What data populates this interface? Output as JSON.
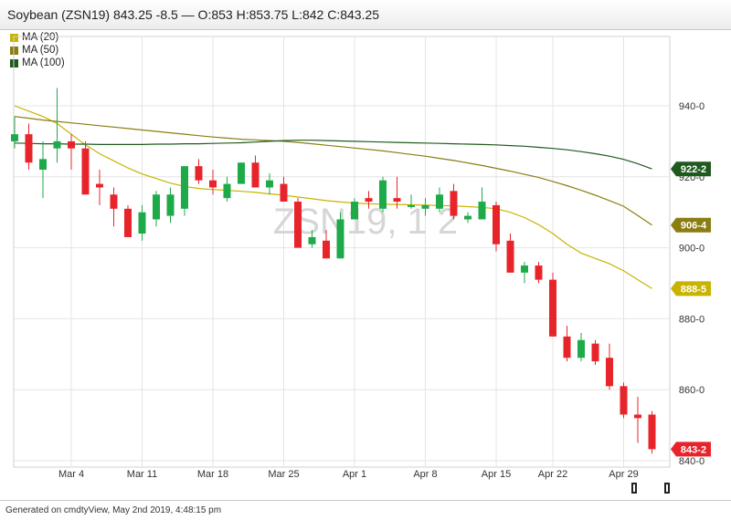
{
  "header": {
    "title": "Soybean (ZSN19) 843.25 -8.5 — O:853 H:853.75 L:842 C:843.25"
  },
  "footer": {
    "text": "Generated on cmdtyView, May 2nd 2019, 4:48:15 pm"
  },
  "colors": {
    "up": "#1faa4a",
    "down": "#e8242b",
    "ma20": "#c8b400",
    "ma50": "#8a7d12",
    "ma100": "#1e5a1e",
    "grid": "#e4e4e4"
  },
  "chart_data": {
    "type": "candlestick",
    "watermark": "ZSN19, 1 2",
    "ylim": [
      840,
      950
    ],
    "y_ticks": [
      {
        "value": 940,
        "label": "940-0"
      },
      {
        "value": 920,
        "label": "920-0"
      },
      {
        "value": 900,
        "label": "900-0"
      },
      {
        "value": 880,
        "label": "880-0"
      },
      {
        "value": 860,
        "label": "860-0"
      },
      {
        "value": 840,
        "label": "840-0"
      }
    ],
    "x_ticks": [
      {
        "index": 4,
        "label": "Mar 4"
      },
      {
        "index": 9,
        "label": "Mar 11"
      },
      {
        "index": 14,
        "label": "Mar 18"
      },
      {
        "index": 19,
        "label": "Mar 25"
      },
      {
        "index": 24,
        "label": "Apr 1"
      },
      {
        "index": 29,
        "label": "Apr 8"
      },
      {
        "index": 34,
        "label": "Apr 15"
      },
      {
        "index": 38,
        "label": "Apr 22"
      },
      {
        "index": 43,
        "label": "Apr 29"
      }
    ],
    "ohlc": [
      [
        930,
        937,
        928,
        932
      ],
      [
        932,
        935,
        922,
        924
      ],
      [
        922,
        930,
        914,
        925
      ],
      [
        928,
        945,
        924,
        930
      ],
      [
        930,
        932,
        922,
        928
      ],
      [
        928,
        930,
        915,
        915
      ],
      [
        918,
        922,
        912,
        917
      ],
      [
        915,
        917,
        906,
        911
      ],
      [
        911,
        912,
        903,
        903
      ],
      [
        904,
        912,
        902,
        910
      ],
      [
        908,
        916,
        906,
        915
      ],
      [
        909,
        917,
        907,
        915
      ],
      [
        911,
        923,
        909,
        923
      ],
      [
        923,
        925,
        918,
        919
      ],
      [
        919,
        922,
        915,
        917
      ],
      [
        914,
        920,
        913,
        918
      ],
      [
        918,
        924,
        918,
        924
      ],
      [
        924,
        926,
        917,
        917
      ],
      [
        917,
        921,
        915,
        919
      ],
      [
        918,
        920,
        913,
        913
      ],
      [
        913,
        914,
        900,
        900
      ],
      [
        901,
        905,
        900,
        903
      ],
      [
        902,
        905,
        897,
        897
      ],
      [
        897,
        910,
        897,
        908
      ],
      [
        908,
        914,
        908,
        913
      ],
      [
        914,
        916,
        911,
        913
      ],
      [
        911,
        920,
        910,
        919
      ],
      [
        914,
        920,
        911,
        913
      ],
      [
        912,
        915,
        911,
        912
      ],
      [
        911,
        914,
        909,
        912
      ],
      [
        911,
        917,
        910,
        915
      ],
      [
        916,
        918,
        908,
        909
      ],
      [
        908,
        910,
        907,
        909
      ],
      [
        908,
        917,
        908,
        913
      ],
      [
        912,
        913,
        899,
        901
      ],
      [
        902,
        904,
        893,
        893
      ],
      [
        893,
        896,
        890,
        895
      ],
      [
        895,
        896,
        890,
        891
      ],
      [
        891,
        893,
        875,
        875
      ],
      [
        875,
        878,
        868,
        869
      ],
      [
        869,
        876,
        868,
        874
      ],
      [
        873,
        874,
        867,
        868
      ],
      [
        869,
        873,
        860,
        861
      ],
      [
        861,
        862,
        852,
        853
      ],
      [
        853,
        858,
        845,
        852
      ],
      [
        853,
        854,
        842,
        843.25
      ]
    ],
    "series": [
      {
        "name": "MA (20)",
        "color_key": "ma20",
        "label": "888-5",
        "values": [
          940,
          938.5,
          937,
          935,
          932,
          929,
          926.5,
          924.5,
          922.5,
          920.8,
          919.5,
          918.2,
          917.3,
          916.7,
          916.4,
          916.2,
          915.9,
          915.6,
          915.2,
          914.8,
          914.3,
          913.8,
          913.3,
          912.9,
          912.6,
          912.4,
          912.3,
          912.2,
          912.1,
          912.0,
          911.9,
          911.8,
          911.6,
          911.4,
          911,
          910,
          908.5,
          906.5,
          904,
          901,
          898.5,
          897,
          895.5,
          893.5,
          891,
          888.5
        ]
      },
      {
        "name": "MA (50)",
        "color_key": "ma50",
        "label": "906-4",
        "values": [
          937,
          936.5,
          936,
          935.6,
          935.2,
          934.8,
          934.4,
          934,
          933.6,
          933.2,
          932.8,
          932.4,
          932,
          931.6,
          931.2,
          930.9,
          930.6,
          930.4,
          930.2,
          930,
          929.7,
          929.3,
          928.9,
          928.5,
          928.1,
          927.7,
          927.3,
          926.8,
          926.3,
          925.8,
          925.2,
          924.6,
          923.9,
          923.2,
          922.4,
          921.6,
          920.7,
          919.8,
          918.7,
          917.5,
          916.2,
          914.8,
          913.3,
          911.7,
          909.1,
          906.4
        ]
      },
      {
        "name": "MA (100)",
        "color_key": "ma100",
        "label": "922-2",
        "values": [
          929.5,
          929.4,
          929.3,
          929.3,
          929.2,
          929.2,
          929.1,
          929.1,
          929.1,
          929.1,
          929.2,
          929.2,
          929.3,
          929.3,
          929.4,
          929.5,
          929.6,
          929.8,
          930,
          930.2,
          930.3,
          930.3,
          930.2,
          930.1,
          930,
          929.9,
          929.8,
          929.7,
          929.6,
          929.5,
          929.4,
          929.3,
          929.2,
          929.1,
          929,
          928.8,
          928.6,
          928.3,
          928,
          927.6,
          927.1,
          926.5,
          925.8,
          924.9,
          923.7,
          922.2
        ]
      }
    ],
    "last_price": {
      "value": 843.25,
      "label": "843-2",
      "color_key": "down"
    }
  }
}
